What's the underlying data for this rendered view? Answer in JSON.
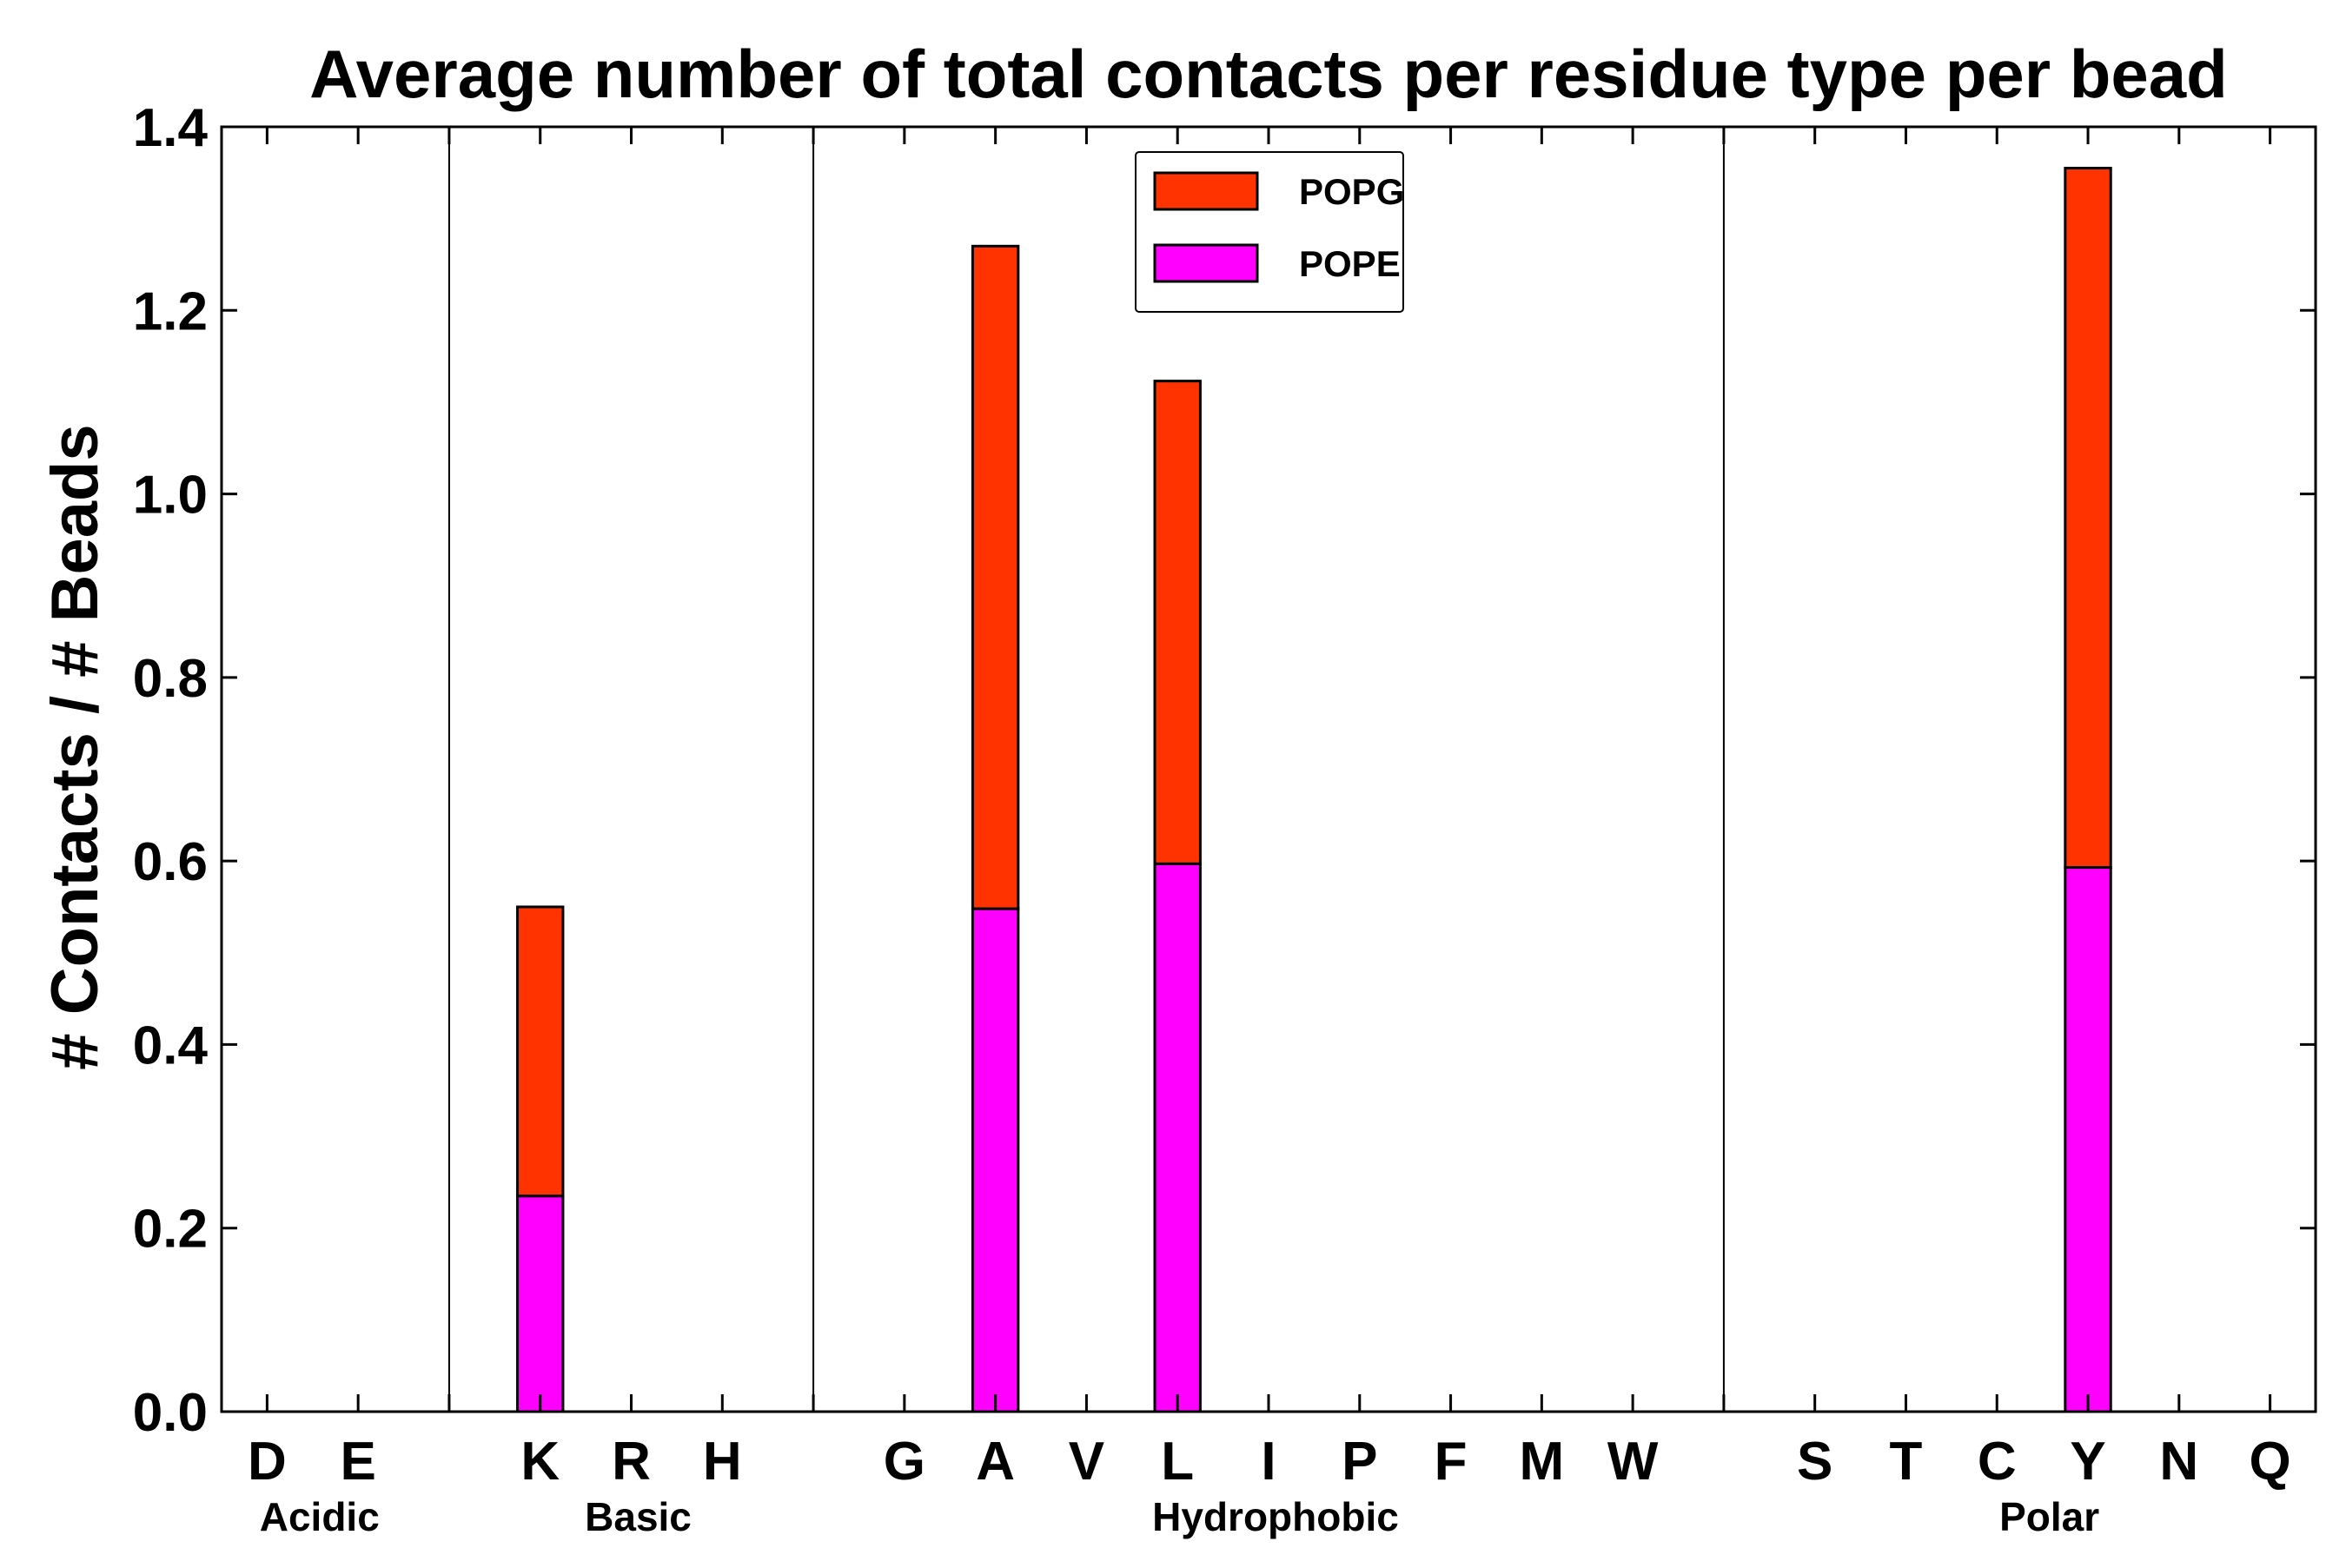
{
  "chart_data": {
    "type": "bar",
    "stacked": true,
    "title": "Average number of total contacts per residue type per bead",
    "xlabel": "",
    "ylabel": "# Contacts / # Beads",
    "ylim": [
      0.0,
      1.4
    ],
    "yticks": [
      "0.0",
      "0.2",
      "0.4",
      "0.6",
      "0.8",
      "1.0",
      "1.2",
      "1.4"
    ],
    "ytick_values": [
      0.0,
      0.2,
      0.4,
      0.6,
      0.8,
      1.0,
      1.2,
      1.4
    ],
    "categories": [
      "D",
      "E",
      "",
      "K",
      "R",
      "H",
      "",
      "G",
      "A",
      "V",
      "L",
      "I",
      "P",
      "F",
      "M",
      "W",
      "",
      "S",
      "T",
      "C",
      "Y",
      "N",
      "Q"
    ],
    "groups": [
      {
        "label": "Acidic",
        "members": [
          "D",
          "E"
        ]
      },
      {
        "label": "Basic",
        "members": [
          "K",
          "R",
          "H"
        ]
      },
      {
        "label": "Hydrophobic",
        "members": [
          "G",
          "A",
          "V",
          "L",
          "I",
          "P",
          "F",
          "M",
          "W"
        ]
      },
      {
        "label": "Polar",
        "members": [
          "S",
          "T",
          "C",
          "Y",
          "N",
          "Q"
        ]
      }
    ],
    "series": [
      {
        "name": "POPE",
        "color": "#ff00ff",
        "values": [
          0,
          0,
          0,
          0.235,
          0,
          0,
          0,
          0,
          0.548,
          0,
          0.597,
          0,
          0,
          0,
          0,
          0,
          0,
          0,
          0,
          0,
          0.593,
          0,
          0
        ]
      },
      {
        "name": "POPG",
        "color": "#ff3300",
        "values": [
          0,
          0,
          0,
          0.315,
          0,
          0,
          0,
          0,
          0.722,
          0,
          0.526,
          0,
          0,
          0,
          0,
          0,
          0,
          0,
          0,
          0,
          0.762,
          0,
          0
        ]
      }
    ],
    "legend": {
      "position": "top-center",
      "entries": [
        "POPG",
        "POPE"
      ]
    },
    "grid": false
  }
}
